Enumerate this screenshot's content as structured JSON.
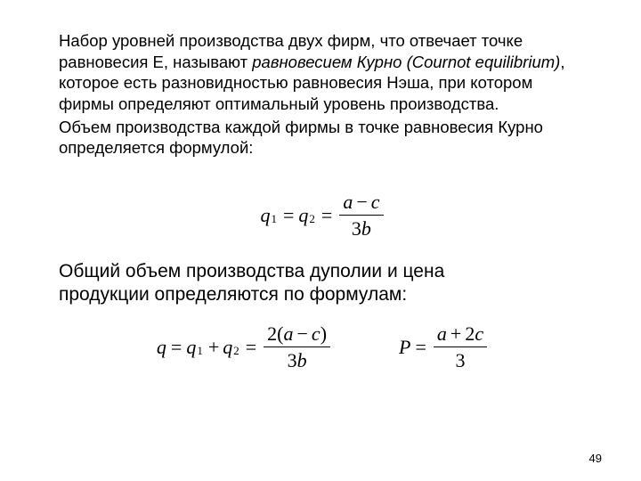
{
  "colors": {
    "text": "#000000",
    "background": "#ffffff"
  },
  "typography": {
    "body_font": "Arial",
    "body_size_pt": 14,
    "emphasis_size_pt": 16,
    "formula_font": "Times New Roman",
    "formula_size_pt": 17,
    "pagenum_size_pt": 10
  },
  "page_number": "49",
  "paragraph1": {
    "pre": "Набор уровней производства двух фирм, что отвечает точке равновесия Е, называют ",
    "italic": "равновесием Курно (Cournot equilibrium)",
    "post": ", которое есть разновидностью равновесия Нэша, при котором фирмы определяют оптимальный уровень производства."
  },
  "paragraph2": "Объем производства каждой фирмы в точке равновесия Курно определяется формулой:",
  "paragraph3": "Общий объем производства дуполии и цена продукции определяются по формулам:",
  "formula1": {
    "type": "equation",
    "lhs_q1": "q",
    "lhs_q1_sub": "1",
    "eq1": "=",
    "lhs_q2": "q",
    "lhs_q2_sub": "2",
    "eq2": "=",
    "num_a": "a",
    "minus": "−",
    "num_c": "c",
    "den_3": "3",
    "den_b": "b"
  },
  "formula2a": {
    "type": "equation",
    "q": "q",
    "eq1": "=",
    "q1": "q",
    "q1_sub": "1",
    "plus": "+",
    "q2": "q",
    "q2_sub": "2",
    "eq2": "=",
    "num_2": "2",
    "lp": "(",
    "num_a": "a",
    "minus": "−",
    "num_c": "c",
    "rp": ")",
    "den_3": "3",
    "den_b": "b"
  },
  "formula2b": {
    "type": "equation",
    "P": "P",
    "eq": "=",
    "num_a": "a",
    "plus": "+",
    "num_2": "2",
    "num_c": "c",
    "den_3": "3"
  }
}
